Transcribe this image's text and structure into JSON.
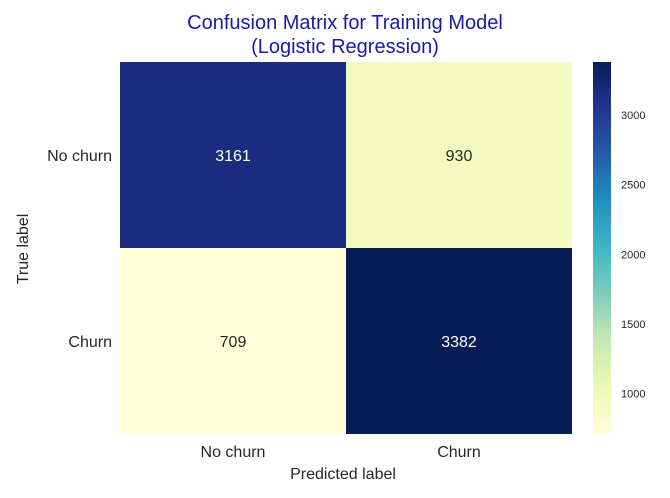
{
  "chart_data": {
    "type": "heatmap",
    "title_lines": [
      "Confusion Matrix for Training Model",
      "(Logistic Regression)"
    ],
    "xlabel": "Predicted label",
    "ylabel": "True label",
    "x_categories": [
      "No churn",
      "Churn"
    ],
    "y_categories": [
      "No churn",
      "Churn"
    ],
    "values": [
      [
        3161,
        930
      ],
      [
        709,
        3382
      ]
    ],
    "colormap": "YlGnBu",
    "colorbar": {
      "min": 709,
      "max": 3382,
      "ticks": [
        1000,
        1500,
        2000,
        2500,
        3000
      ],
      "tick_labels": [
        "1000",
        "1500",
        "2000",
        "2500",
        "3000"
      ]
    },
    "grid": false,
    "annotations": true
  },
  "colors": {
    "title": "#1a1aa6",
    "text_dark": "#262626",
    "annotation_on_dark": "#ffffff",
    "annotation_on_light": "#262626"
  }
}
